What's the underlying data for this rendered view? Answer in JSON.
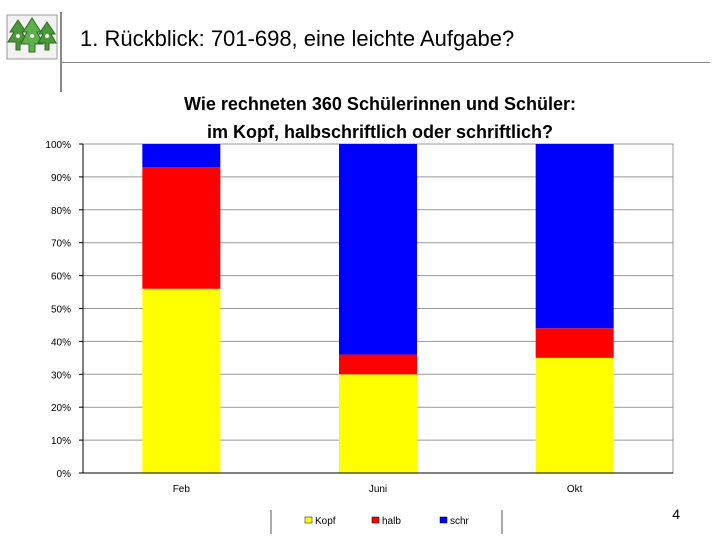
{
  "slide": {
    "title": "1. Rückblick: 701-698, eine leichte Aufgabe?",
    "page_number": "4",
    "colors": {
      "accent_line": "#888888",
      "logo_green": "#4a9a3a"
    }
  },
  "chart_data": {
    "type": "bar",
    "stacked": true,
    "percent": true,
    "title_lines": [
      "Wie rechneten 360 Schülerinnen und Schüler:",
      "im Kopf, halbschriftlich oder schriftlich?"
    ],
    "categories": [
      "Feb",
      "Juni",
      "Okt"
    ],
    "series": [
      {
        "name": "Kopf",
        "color": "#ffff00",
        "values": [
          56,
          30,
          35
        ]
      },
      {
        "name": "halb",
        "color": "#ff0000",
        "values": [
          37,
          6,
          9
        ]
      },
      {
        "name": "schr",
        "color": "#0000ff",
        "values": [
          7,
          64,
          56
        ]
      }
    ],
    "ylim": [
      0,
      100
    ],
    "yticks": [
      "0%",
      "10%",
      "20%",
      "30%",
      "40%",
      "50%",
      "60%",
      "70%",
      "80%",
      "90%",
      "100%"
    ],
    "grid": true,
    "legend_position": "bottom"
  }
}
